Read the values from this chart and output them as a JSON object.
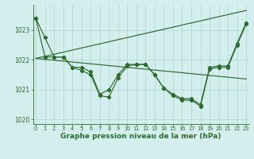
{
  "xlabel": "Graphe pression niveau de la mer (hPa)",
  "x": [
    0,
    1,
    2,
    3,
    4,
    5,
    6,
    7,
    8,
    9,
    10,
    11,
    12,
    13,
    14,
    15,
    16,
    17,
    18,
    19,
    20,
    21,
    22,
    23
  ],
  "series1": [
    1023.4,
    1022.75,
    1022.1,
    1022.1,
    1021.75,
    1021.75,
    1021.6,
    1020.85,
    1021.0,
    1021.5,
    1021.85,
    1021.85,
    1021.85,
    1021.5,
    1021.05,
    1020.85,
    1020.7,
    1020.7,
    1020.5,
    1021.75,
    1021.8,
    1021.8,
    1022.55,
    1023.25
  ],
  "series2": [
    1023.4,
    1022.1,
    1022.1,
    1022.1,
    1021.75,
    1021.65,
    1021.5,
    1020.8,
    1020.75,
    1021.4,
    1021.8,
    1021.85,
    1021.85,
    1021.5,
    1021.05,
    1020.8,
    1020.65,
    1020.65,
    1020.45,
    1021.7,
    1021.75,
    1021.75,
    1022.5,
    1023.2
  ],
  "trend_up": [
    1022.05,
    1022.12,
    1022.19,
    1022.26,
    1022.33,
    1022.4,
    1022.47,
    1022.54,
    1022.61,
    1022.68,
    1022.75,
    1022.82,
    1022.89,
    1022.96,
    1023.03,
    1023.1,
    1023.17,
    1023.24,
    1023.31,
    1023.38,
    1023.45,
    1023.52,
    1023.59,
    1023.66
  ],
  "trend_flat": [
    1022.05,
    1022.02,
    1021.99,
    1021.96,
    1021.93,
    1021.9,
    1021.87,
    1021.84,
    1021.81,
    1021.78,
    1021.75,
    1021.72,
    1021.69,
    1021.66,
    1021.63,
    1021.6,
    1021.57,
    1021.54,
    1021.51,
    1021.48,
    1021.45,
    1021.42,
    1021.39,
    1021.36
  ],
  "line_color": "#2d6a2d",
  "bg_color": "#d4eeee",
  "grid_color": "#a8d8cc",
  "ylim": [
    1019.85,
    1023.85
  ],
  "yticks": [
    1020,
    1021,
    1022,
    1023
  ],
  "xticks": [
    0,
    1,
    2,
    3,
    4,
    5,
    6,
    7,
    8,
    9,
    10,
    11,
    12,
    13,
    14,
    15,
    16,
    17,
    18,
    19,
    20,
    21,
    22,
    23
  ]
}
